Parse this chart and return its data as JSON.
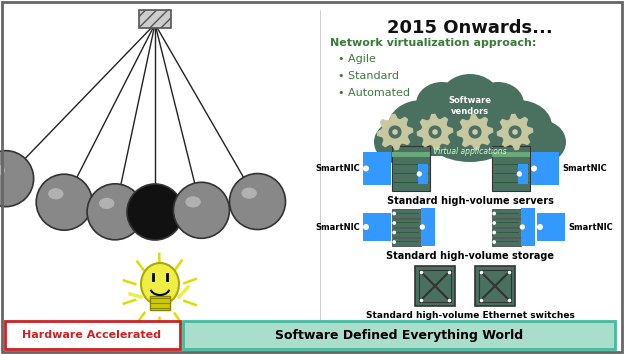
{
  "bg_color": "#ffffff",
  "title": "2015 Onwards...",
  "nv_title": "Network virtualization approach:",
  "nv_items": [
    "Agile",
    "Standard",
    "Automated"
  ],
  "nv_color": "#3a7a3a",
  "cloud_color": "#4a7060",
  "server_color": "#4a7060",
  "blue_color": "#3399ff",
  "bottom_bar_left_text": "Hardware Accelerated",
  "bottom_bar_right_text": "Software Defined Everything World",
  "bottom_bar_left_border": "#cc2222",
  "bottom_bar_right_border": "#44bb99",
  "bottom_bar_right_fill": "#aaddcc"
}
